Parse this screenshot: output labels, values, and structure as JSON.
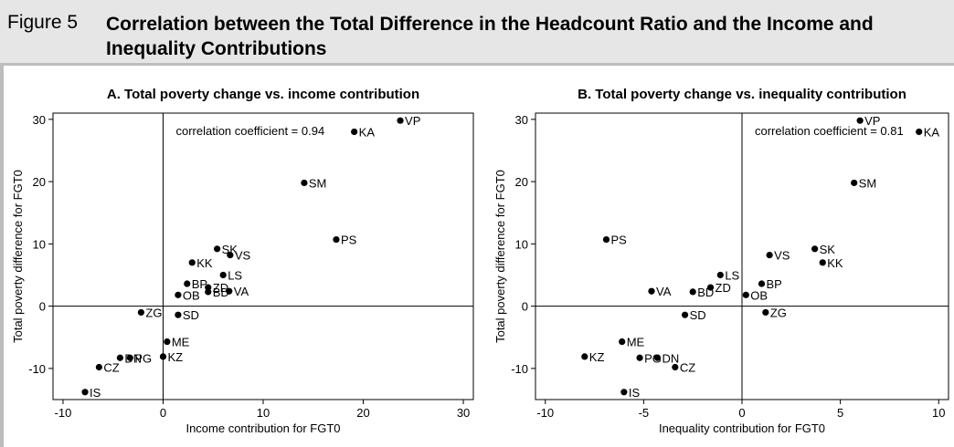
{
  "figure": {
    "label": "Figure 5",
    "title": "Correlation between the Total Difference in the Headcount Ratio and the Income and Inequality Contributions"
  },
  "chart_data": [
    {
      "type": "scatter",
      "title": "A. Total poverty change vs. income contribution",
      "xlabel": "Income contribution for FGT0",
      "ylabel": "Total poverty difference for FGT0",
      "xlim": [
        -11,
        31
      ],
      "ylim": [
        -15,
        31
      ],
      "xticks": [
        -10,
        0,
        10,
        20,
        30
      ],
      "yticks": [
        -10,
        0,
        10,
        20,
        30
      ],
      "annotation": "correlation coefficient = 0.94",
      "points": [
        {
          "label": "VP",
          "x": 23.7,
          "y": 29.8
        },
        {
          "label": "KA",
          "x": 19.1,
          "y": 28.0
        },
        {
          "label": "SM",
          "x": 14.1,
          "y": 19.8
        },
        {
          "label": "PS",
          "x": 17.3,
          "y": 10.7
        },
        {
          "label": "SK",
          "x": 5.4,
          "y": 9.2
        },
        {
          "label": "VS",
          "x": 6.7,
          "y": 8.2
        },
        {
          "label": "KK",
          "x": 2.9,
          "y": 7.0
        },
        {
          "label": "LS",
          "x": 6.0,
          "y": 5.0
        },
        {
          "label": "BP",
          "x": 2.4,
          "y": 3.6
        },
        {
          "label": "ZD",
          "x": 4.5,
          "y": 3.0
        },
        {
          "label": "BD",
          "x": 4.5,
          "y": 2.3
        },
        {
          "label": "VA",
          "x": 6.6,
          "y": 2.4
        },
        {
          "label": "OB",
          "x": 1.5,
          "y": 1.8
        },
        {
          "label": "ZG",
          "x": -2.2,
          "y": -1.0
        },
        {
          "label": "SD",
          "x": 1.5,
          "y": -1.4
        },
        {
          "label": "ME",
          "x": 0.4,
          "y": -5.7
        },
        {
          "label": "KZ",
          "x": 0.0,
          "y": -8.1
        },
        {
          "label": "DN",
          "x": -4.3,
          "y": -8.3
        },
        {
          "label": "PG",
          "x": -3.3,
          "y": -8.3
        },
        {
          "label": "CZ",
          "x": -6.4,
          "y": -9.8
        },
        {
          "label": "IS",
          "x": -7.8,
          "y": -13.8
        }
      ]
    },
    {
      "type": "scatter",
      "title": "B. Total poverty change vs. inequality contribution",
      "xlabel": "Inequality contribution for FGT0",
      "ylabel": "Total poverty difference for FGT0",
      "xlim": [
        -10.5,
        10.5
      ],
      "ylim": [
        -15,
        31
      ],
      "xticks": [
        -10,
        -5,
        0,
        5,
        10
      ],
      "yticks": [
        -10,
        0,
        10,
        20,
        30
      ],
      "annotation": "correlation coefficient = 0.81",
      "points": [
        {
          "label": "VP",
          "x": 6.0,
          "y": 29.8
        },
        {
          "label": "KA",
          "x": 9.0,
          "y": 28.0
        },
        {
          "label": "SM",
          "x": 5.7,
          "y": 19.8
        },
        {
          "label": "PS",
          "x": -6.9,
          "y": 10.7
        },
        {
          "label": "SK",
          "x": 3.7,
          "y": 9.2
        },
        {
          "label": "VS",
          "x": 1.4,
          "y": 8.2
        },
        {
          "label": "KK",
          "x": 4.1,
          "y": 7.0
        },
        {
          "label": "LS",
          "x": -1.1,
          "y": 5.0
        },
        {
          "label": "BP",
          "x": 1.0,
          "y": 3.6
        },
        {
          "label": "ZD",
          "x": -1.6,
          "y": 3.0
        },
        {
          "label": "BD",
          "x": -2.5,
          "y": 2.3
        },
        {
          "label": "VA",
          "x": -4.6,
          "y": 2.4
        },
        {
          "label": "OB",
          "x": 0.2,
          "y": 1.8
        },
        {
          "label": "ZG",
          "x": 1.2,
          "y": -1.0
        },
        {
          "label": "SD",
          "x": -2.9,
          "y": -1.4
        },
        {
          "label": "ME",
          "x": -6.1,
          "y": -5.7
        },
        {
          "label": "KZ",
          "x": -8.0,
          "y": -8.1
        },
        {
          "label": "PG",
          "x": -5.2,
          "y": -8.3
        },
        {
          "label": "DN",
          "x": -4.3,
          "y": -8.3
        },
        {
          "label": "CZ",
          "x": -3.4,
          "y": -9.8
        },
        {
          "label": "IS",
          "x": -6.0,
          "y": -13.8
        }
      ]
    }
  ]
}
